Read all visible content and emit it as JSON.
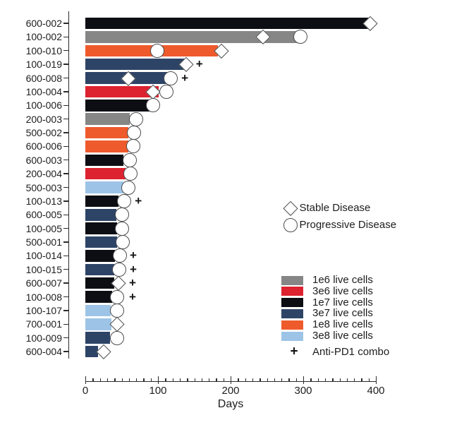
{
  "chart_data": {
    "type": "bar",
    "orientation": "horizontal-swimmer",
    "title": "",
    "xlabel": "Days",
    "ylabel": "",
    "xlim": [
      0,
      400
    ],
    "x_major_ticks": [
      0,
      100,
      200,
      300,
      400
    ],
    "x_minor_tick_step": 10,
    "grid": false,
    "plus_glyph": "+",
    "colors": {
      "axis": "#2b2b2b",
      "text": "#1d1d1f",
      "marker_fill": "#ffffff",
      "marker_outline": "#4c4d4f"
    },
    "marker_legend": [
      {
        "marker": "diamond",
        "label": "Stable Disease"
      },
      {
        "marker": "circle",
        "label": "Progressive Disease"
      }
    ],
    "dose_legend": [
      {
        "key": "1e6",
        "color": "#868686",
        "label": "1e6 live cells"
      },
      {
        "key": "3e6",
        "color": "#dd2230",
        "label": "3e6 live cells"
      },
      {
        "key": "1e7",
        "color": "#0c0e13",
        "label": "1e7 live cells"
      },
      {
        "key": "3e7",
        "color": "#2e4467",
        "label": "3e7 live cells"
      },
      {
        "key": "1e8",
        "color": "#ee5a2c",
        "label": "1e8 live cells"
      },
      {
        "key": "3e8",
        "color": "#9dc4e6",
        "label": "3e8 live cells"
      }
    ],
    "combo_legend": {
      "marker": "plus",
      "label": "Anti-PD1 combo"
    },
    "rows": [
      {
        "subject": "600-002",
        "dose": "1e7",
        "days": 390,
        "markers": [
          {
            "type": "diamond",
            "day": 392
          }
        ]
      },
      {
        "subject": "100-002",
        "dose": "1e6",
        "days": 295,
        "markers": [
          {
            "type": "diamond",
            "day": 245
          },
          {
            "type": "circle",
            "day": 296
          }
        ]
      },
      {
        "subject": "100-010",
        "dose": "1e8",
        "days": 183,
        "markers": [
          {
            "type": "circle",
            "day": 99
          },
          {
            "type": "diamond",
            "day": 187
          }
        ]
      },
      {
        "subject": "100-019",
        "dose": "3e7",
        "days": 136,
        "markers": [
          {
            "type": "diamond",
            "day": 139
          },
          {
            "type": "plus",
            "day": 157
          }
        ]
      },
      {
        "subject": "600-008",
        "dose": "3e7",
        "days": 114,
        "markers": [
          {
            "type": "diamond",
            "day": 59
          },
          {
            "type": "circle",
            "day": 117
          },
          {
            "type": "plus",
            "day": 137
          }
        ]
      },
      {
        "subject": "100-004",
        "dose": "3e6",
        "days": 101,
        "markers": [
          {
            "type": "diamond",
            "day": 93
          },
          {
            "type": "circle",
            "day": 112
          }
        ]
      },
      {
        "subject": "100-006",
        "dose": "1e7",
        "days": 88,
        "markers": [
          {
            "type": "circle",
            "day": 93
          }
        ]
      },
      {
        "subject": "200-003",
        "dose": "1e6",
        "days": 61,
        "markers": [
          {
            "type": "circle",
            "day": 70
          }
        ]
      },
      {
        "subject": "500-002",
        "dose": "1e8",
        "days": 59,
        "markers": [
          {
            "type": "circle",
            "day": 67
          }
        ]
      },
      {
        "subject": "600-006",
        "dose": "1e8",
        "days": 59,
        "markers": [
          {
            "type": "circle",
            "day": 66
          }
        ]
      },
      {
        "subject": "600-003",
        "dose": "1e7",
        "days": 52,
        "markers": [
          {
            "type": "circle",
            "day": 61
          }
        ]
      },
      {
        "subject": "200-004",
        "dose": "3e6",
        "days": 55,
        "markers": [
          {
            "type": "circle",
            "day": 62
          }
        ]
      },
      {
        "subject": "500-003",
        "dose": "3e8",
        "days": 52,
        "markers": [
          {
            "type": "circle",
            "day": 59
          }
        ]
      },
      {
        "subject": "100-013",
        "dose": "1e7",
        "days": 46,
        "markers": [
          {
            "type": "circle",
            "day": 53
          },
          {
            "type": "plus",
            "day": 73
          }
        ]
      },
      {
        "subject": "600-005",
        "dose": "3e7",
        "days": 43,
        "markers": [
          {
            "type": "circle",
            "day": 50
          }
        ]
      },
      {
        "subject": "100-005",
        "dose": "1e7",
        "days": 44,
        "markers": [
          {
            "type": "circle",
            "day": 50
          }
        ]
      },
      {
        "subject": "500-001",
        "dose": "3e7",
        "days": 44,
        "markers": [
          {
            "type": "circle",
            "day": 51
          }
        ]
      },
      {
        "subject": "100-014",
        "dose": "1e7",
        "days": 41,
        "markers": [
          {
            "type": "circle",
            "day": 48
          },
          {
            "type": "plus",
            "day": 66
          }
        ]
      },
      {
        "subject": "100-015",
        "dose": "3e7",
        "days": 40,
        "markers": [
          {
            "type": "circle",
            "day": 47
          },
          {
            "type": "plus",
            "day": 66
          }
        ]
      },
      {
        "subject": "600-007",
        "dose": "1e7",
        "days": 40,
        "markers": [
          {
            "type": "diamond",
            "day": 46
          },
          {
            "type": "plus",
            "day": 65
          }
        ]
      },
      {
        "subject": "100-008",
        "dose": "1e7",
        "days": 37,
        "markers": [
          {
            "type": "circle",
            "day": 44
          },
          {
            "type": "plus",
            "day": 65
          }
        ]
      },
      {
        "subject": "100-107",
        "dose": "3e8",
        "days": 35,
        "markers": [
          {
            "type": "circle",
            "day": 44
          }
        ]
      },
      {
        "subject": "700-001",
        "dose": "3e8",
        "days": 36,
        "markers": [
          {
            "type": "diamond",
            "day": 44
          }
        ]
      },
      {
        "subject": "100-009",
        "dose": "3e7",
        "days": 34,
        "markers": [
          {
            "type": "circle",
            "day": 44
          }
        ]
      },
      {
        "subject": "600-004",
        "dose": "3e7",
        "days": 17,
        "markers": [
          {
            "type": "diamond",
            "day": 25
          }
        ]
      }
    ]
  }
}
